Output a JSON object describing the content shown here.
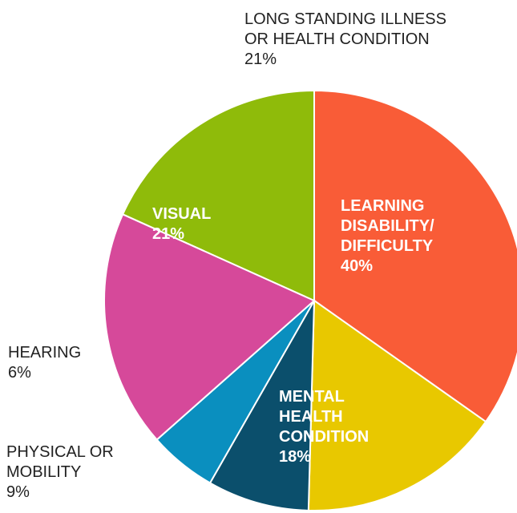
{
  "chart_data": {
    "type": "pie",
    "categories": [
      "LEARNING DISABILITY/ DIFFICULTY",
      "MENTAL HEALTH CONDITION",
      "PHYSICAL OR MOBILITY",
      "HEARING",
      "VISUAL",
      "LONG STANDING ILLNESS OR HEALTH CONDITION"
    ],
    "values": [
      40,
      18,
      9,
      6,
      21,
      21
    ],
    "value_labels": [
      "40%",
      "18%",
      "9%",
      "6%",
      "21%",
      "21%"
    ],
    "colors": [
      "#f95c37",
      "#e8c800",
      "#0b4f6c",
      "#0a8fbf",
      "#d6499a",
      "#8fbb0a"
    ]
  }
}
